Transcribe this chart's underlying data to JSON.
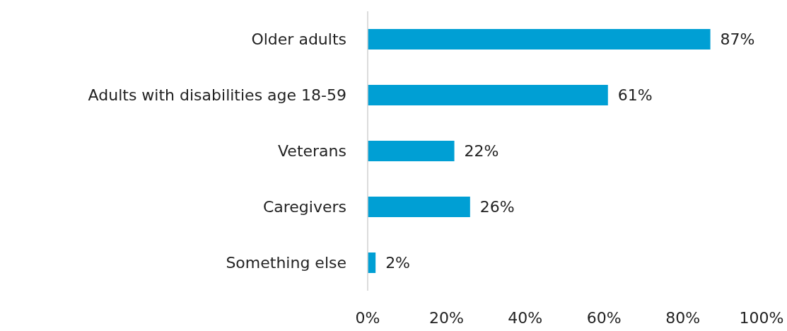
{
  "chart_data": {
    "type": "bar",
    "orientation": "horizontal",
    "categories": [
      "Older adults",
      "Adults with disabilities age 18-59",
      "Veterans",
      "Caregivers",
      "Something else"
    ],
    "values": [
      87,
      61,
      22,
      26,
      2
    ],
    "value_labels": [
      "87%",
      "61%",
      "22%",
      "26%",
      "2%"
    ],
    "color": "#009fd4",
    "xlim": [
      0,
      100
    ],
    "xticks": [
      {
        "value": 0,
        "label": "0%"
      },
      {
        "value": 20,
        "label": "20%"
      },
      {
        "value": 40,
        "label": "40%"
      },
      {
        "value": 60,
        "label": "60%"
      },
      {
        "value": 80,
        "label": "80%"
      },
      {
        "value": 100,
        "label": "100%"
      }
    ],
    "grid": false,
    "legend": false
  }
}
